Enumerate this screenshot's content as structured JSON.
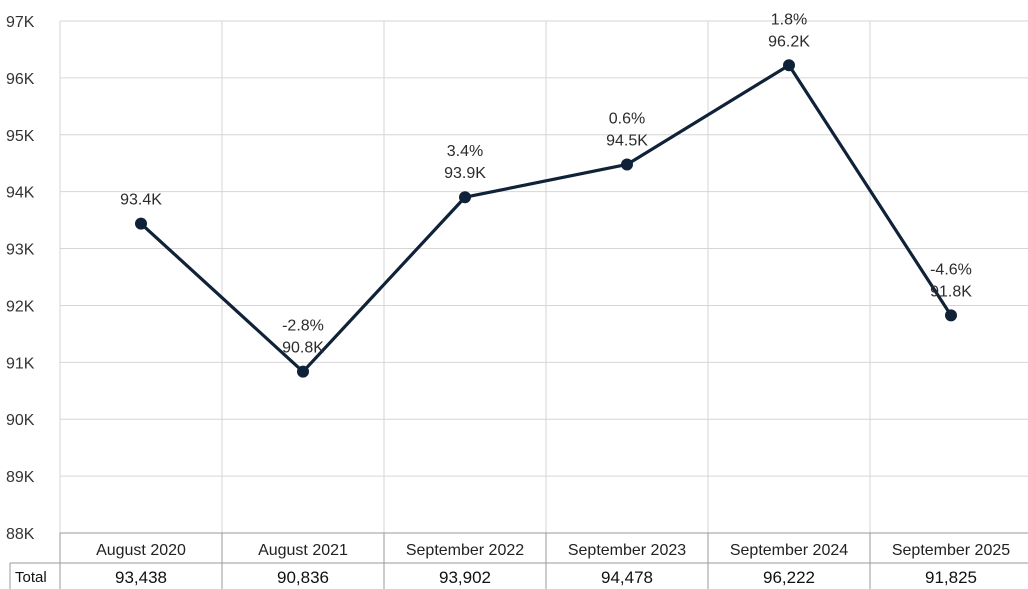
{
  "chart_data": {
    "type": "line",
    "categories": [
      "August 2020",
      "August 2021",
      "September 2022",
      "September 2023",
      "September 2024",
      "September 2025"
    ],
    "series": [
      {
        "values": [
          93438,
          90836,
          93902,
          94478,
          96222,
          91825
        ]
      }
    ],
    "value_labels": [
      "93.4K",
      "90.8K",
      "93.9K",
      "94.5K",
      "96.2K",
      "91.8K"
    ],
    "change_labels": [
      "",
      "-2.8%",
      "3.4%",
      "0.6%",
      "1.8%",
      "-4.6%"
    ],
    "ylim": [
      88000,
      97000
    ],
    "yticks": [
      97000,
      96000,
      95000,
      94000,
      93000,
      92000,
      91000,
      90000,
      89000,
      88000
    ],
    "ytick_labels": [
      "97K",
      "96K",
      "95K",
      "94K",
      "93K",
      "92K",
      "91K",
      "90K",
      "89K",
      "88K"
    ],
    "grid": true,
    "line_color": "#0f2238",
    "grid_color": "#d6d6d6",
    "table": {
      "row_label": "Total",
      "values": [
        "93,438",
        "90,836",
        "93,902",
        "94,478",
        "96,222",
        "91,825"
      ]
    }
  }
}
